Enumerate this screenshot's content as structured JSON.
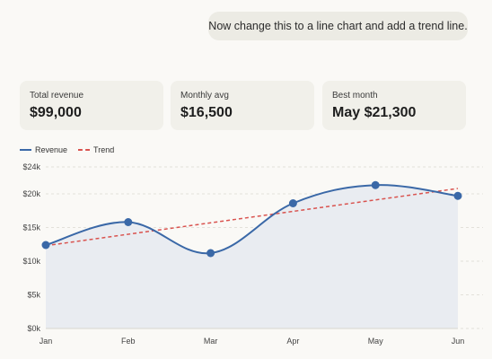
{
  "chat": {
    "message": "Now change this to a line chart and add a trend line."
  },
  "cards": [
    {
      "label": "Total revenue",
      "value": "$99,000"
    },
    {
      "label": "Monthly avg",
      "value": "$16,500"
    },
    {
      "label": "Best month",
      "value": "May $21,300"
    }
  ],
  "colors": {
    "revenue": "#3a68a7",
    "trend": "#d9534f",
    "area": "#e9ecf1"
  },
  "chart_data": {
    "type": "line",
    "title": "",
    "xlabel": "",
    "ylabel": "",
    "categories": [
      "Jan",
      "Feb",
      "Mar",
      "Apr",
      "May",
      "Jun"
    ],
    "series": [
      {
        "name": "Revenue",
        "values": [
          12400,
          15800,
          11200,
          18600,
          21300,
          19700
        ]
      },
      {
        "name": "Trend",
        "values": [
          12300,
          14000,
          15700,
          17400,
          19100,
          20800
        ]
      }
    ],
    "ylim": [
      0,
      24000
    ],
    "yticks": [
      0,
      5000,
      10000,
      15000,
      20000,
      24000
    ],
    "ytick_labels": [
      "$0k",
      "$5k",
      "$10k",
      "$15k",
      "$20k",
      "$24k"
    ],
    "legend": [
      "Revenue",
      "Trend"
    ],
    "legend_position": "top-left",
    "grid": true,
    "area_fill": true
  }
}
